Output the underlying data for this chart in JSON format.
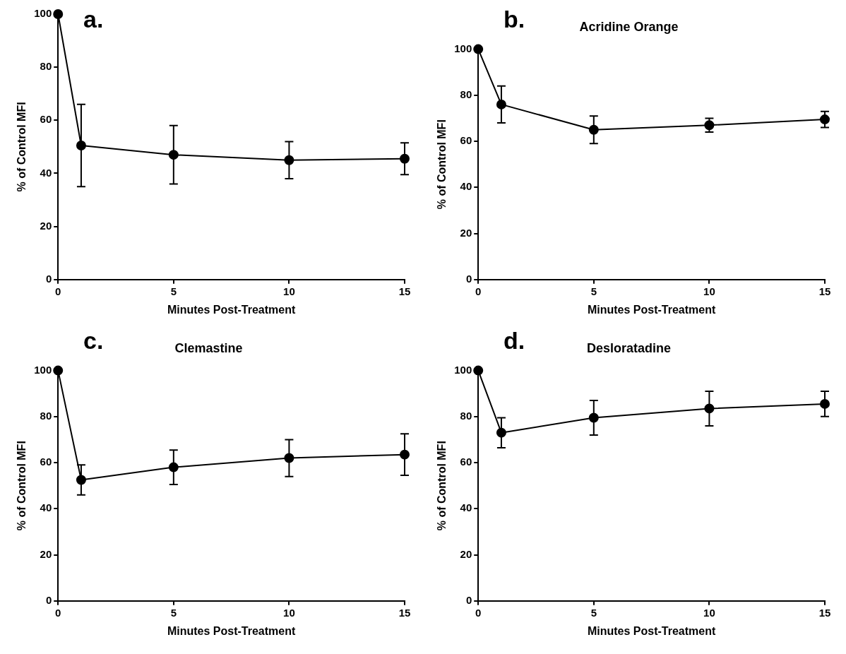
{
  "chart_data": [
    {
      "type": "line",
      "annotations": [
        "a."
      ],
      "xlabel": "Minutes Post-Treatment",
      "ylabel": "% of Control MFI",
      "x": [
        0,
        1,
        5,
        10,
        15
      ],
      "values": [
        100,
        50.5,
        47,
        45,
        45.5
      ],
      "errors": [
        null,
        15.5,
        11,
        7,
        6
      ],
      "color": "#000000",
      "marker": "circle",
      "line_style": "solid",
      "xlim": [
        0,
        15
      ],
      "xticks": [
        0,
        5,
        10,
        15
      ],
      "ylim": [
        0,
        100
      ],
      "yticks": [
        0,
        20,
        40,
        60,
        80,
        100
      ],
      "grid": false,
      "legend": false
    },
    {
      "type": "line",
      "title": "Acridine Orange",
      "annotations": [
        "b."
      ],
      "xlabel": "Minutes Post-Treatment",
      "ylabel": "% of Control MFI",
      "x": [
        0,
        1,
        5,
        10,
        15
      ],
      "values": [
        100,
        76,
        65,
        67,
        69.5
      ],
      "errors": [
        null,
        8,
        6,
        3,
        3.5
      ],
      "color": "#000000",
      "marker": "circle",
      "line_style": "solid",
      "xlim": [
        0,
        15
      ],
      "xticks": [
        0,
        5,
        10,
        15
      ],
      "ylim": [
        0,
        100
      ],
      "yticks": [
        0,
        20,
        40,
        60,
        80,
        100
      ],
      "grid": false,
      "legend": false
    },
    {
      "type": "line",
      "title": "Clemastine",
      "annotations": [
        "c."
      ],
      "xlabel": "Minutes Post-Treatment",
      "ylabel": "% of Control MFI",
      "x": [
        0,
        1,
        5,
        10,
        15
      ],
      "values": [
        100,
        52.5,
        58,
        62,
        63.5
      ],
      "errors": [
        null,
        6.5,
        7.5,
        8,
        9
      ],
      "color": "#000000",
      "marker": "circle",
      "line_style": "solid",
      "xlim": [
        0,
        15
      ],
      "xticks": [
        0,
        5,
        10,
        15
      ],
      "ylim": [
        0,
        100
      ],
      "yticks": [
        0,
        20,
        40,
        60,
        80,
        100
      ],
      "grid": false,
      "legend": false
    },
    {
      "type": "line",
      "title": "Desloratadine",
      "annotations": [
        "d."
      ],
      "xlabel": "Minutes Post-Treatment",
      "ylabel": "% of Control MFI",
      "x": [
        0,
        1,
        5,
        10,
        15
      ],
      "values": [
        100,
        73,
        79.5,
        83.5,
        85.5
      ],
      "errors": [
        null,
        6.5,
        7.5,
        7.5,
        5.5
      ],
      "color": "#000000",
      "marker": "circle",
      "line_style": "solid",
      "xlim": [
        0,
        15
      ],
      "xticks": [
        0,
        5,
        10,
        15
      ],
      "ylim": [
        0,
        100
      ],
      "yticks": [
        0,
        20,
        40,
        60,
        80,
        100
      ],
      "grid": false,
      "legend": false
    }
  ]
}
